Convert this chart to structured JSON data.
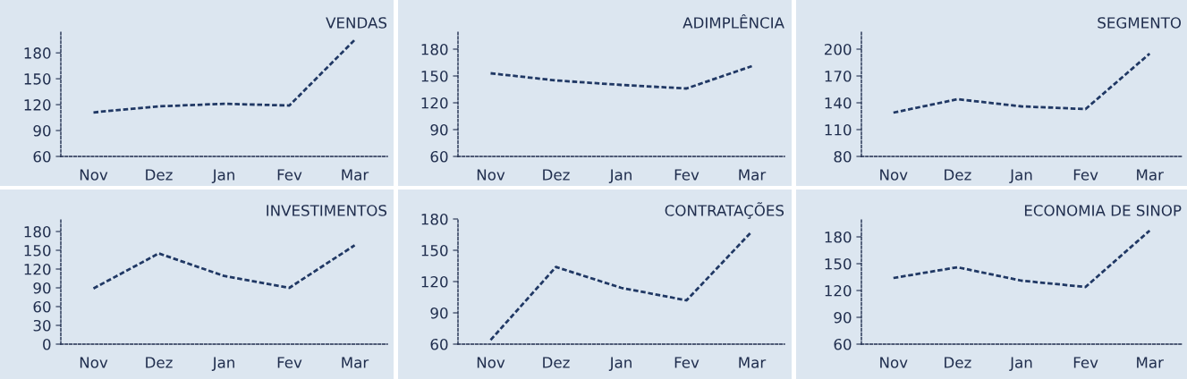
{
  "chart_data": [
    {
      "type": "line",
      "title": "VENDAS",
      "categories": [
        "Nov",
        "Dez",
        "Jan",
        "Fev",
        "Mar"
      ],
      "series": [
        {
          "color": "#203864",
          "values": [
            111,
            118,
            121,
            119,
            195
          ]
        }
      ],
      "ylim": [
        60,
        205
      ],
      "yticks": [
        60,
        90,
        120,
        150,
        180
      ],
      "line_style": "dashed"
    },
    {
      "type": "line",
      "title": "ADIMPLÊNCIA",
      "categories": [
        "Nov",
        "Dez",
        "Jan",
        "Fev",
        "Mar"
      ],
      "series": [
        {
          "color": "#203864",
          "values": [
            153,
            145,
            140,
            136,
            161
          ]
        }
      ],
      "ylim": [
        60,
        200
      ],
      "yticks": [
        60,
        90,
        120,
        150,
        180
      ],
      "line_style": "dashed"
    },
    {
      "type": "line",
      "title": "SEGMENTO",
      "categories": [
        "Nov",
        "Dez",
        "Jan",
        "Fev",
        "Mar"
      ],
      "series": [
        {
          "color": "#203864",
          "values": [
            129,
            144,
            136,
            133,
            195
          ]
        }
      ],
      "ylim": [
        80,
        220
      ],
      "yticks": [
        80,
        110,
        140,
        170,
        200
      ],
      "line_style": "dashed"
    },
    {
      "type": "line",
      "title": "INVESTIMENTOS",
      "categories": [
        "Nov",
        "Dez",
        "Jan",
        "Fev",
        "Mar"
      ],
      "series": [
        {
          "color": "#203864",
          "values": [
            89,
            145,
            109,
            90,
            158
          ]
        }
      ],
      "ylim": [
        0,
        200
      ],
      "yticks": [
        0,
        30,
        60,
        90,
        120,
        150,
        180
      ],
      "line_style": "dashed"
    },
    {
      "type": "line",
      "title": "CONTRATAÇÕES",
      "categories": [
        "Nov",
        "Dez",
        "Jan",
        "Fev",
        "Mar"
      ],
      "series": [
        {
          "color": "#203864",
          "values": [
            64,
            134,
            114,
            102,
            168
          ]
        }
      ],
      "ylim": [
        60,
        180
      ],
      "yticks": [
        60,
        90,
        120,
        150,
        180
      ],
      "line_style": "dashed"
    },
    {
      "type": "line",
      "title": "ECONOMIA DE SINOP",
      "categories": [
        "Nov",
        "Dez",
        "Jan",
        "Fev",
        "Mar"
      ],
      "series": [
        {
          "color": "#203864",
          "values": [
            134,
            146,
            131,
            124,
            187
          ]
        }
      ],
      "ylim": [
        60,
        200
      ],
      "yticks": [
        60,
        90,
        120,
        150,
        180
      ],
      "line_style": "dashed"
    }
  ]
}
